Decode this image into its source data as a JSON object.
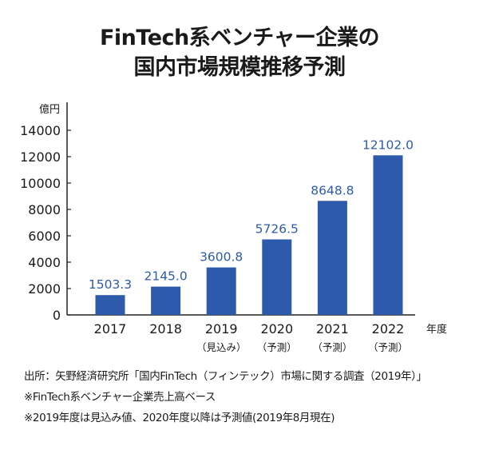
{
  "title_line1": "FinTech系ベンチャー企業の",
  "title_line2": "国内市場規模推移予測",
  "chart_data": {
    "type": "bar",
    "categories": [
      "2017",
      "2018",
      "2019",
      "2020",
      "2021",
      "2022"
    ],
    "category_sublabels": [
      "",
      "",
      "（見込み）",
      "（予測）",
      "（予測）",
      "（予測）"
    ],
    "values": [
      1503.3,
      2145.0,
      3600.8,
      5726.5,
      8648.8,
      12102.0
    ],
    "value_labels": [
      "1503.3",
      "2145.0",
      "3600.8",
      "5726.5",
      "8648.8",
      "12102.0"
    ],
    "yunit": "億円",
    "xunit": "年度",
    "ylim": [
      0,
      14000
    ],
    "yticks": [
      "0",
      "2000",
      "4000",
      "6000",
      "8000",
      "10000",
      "12000",
      "14000"
    ],
    "bar_color": "#2e5aac",
    "value_label_color": "#2e5aac",
    "grid": false
  },
  "notes": [
    "出所：矢野経済研究所「国内FinTech（フィンテック）市場に関する調査（2019年）」",
    "※FinTech系ベンチャー企業売上高ベース",
    "※2019年度は見込み値、2020年度以降は予測値(2019年8月現在)"
  ]
}
